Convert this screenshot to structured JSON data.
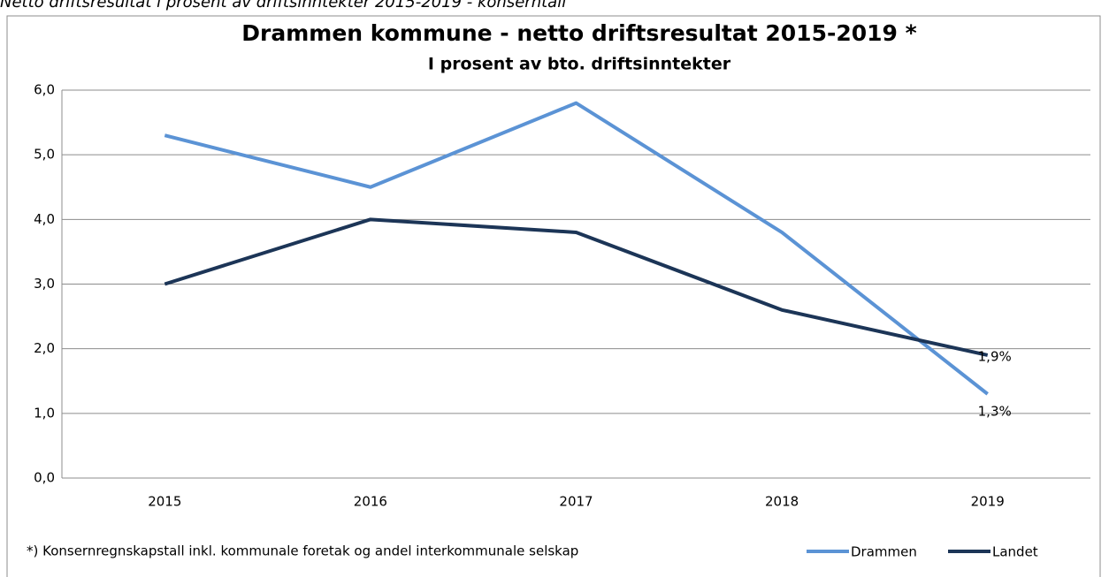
{
  "caption": "Netto driftsresultat i prosent av driftsinntekter 2015-2019 - konserntall",
  "chart_data": {
    "type": "line",
    "title": "Drammen kommune - netto driftsresultat 2015-2019 *",
    "subtitle": "I prosent av bto. driftsinntekter",
    "categories": [
      "2015",
      "2016",
      "2017",
      "2018",
      "2019"
    ],
    "series": [
      {
        "name": "Drammen",
        "color": "#5b93d5",
        "values": [
          5.3,
          4.5,
          5.8,
          3.8,
          1.3
        ],
        "value_labels": [
          null,
          null,
          null,
          null,
          "1,3%"
        ]
      },
      {
        "name": "Landet",
        "color": "#1c3557",
        "values": [
          3.0,
          4.0,
          3.8,
          2.6,
          1.9
        ],
        "value_labels": [
          null,
          null,
          null,
          null,
          "1,9%"
        ]
      }
    ],
    "ylim": [
      0,
      6
    ],
    "yticks": [
      {
        "value": 0,
        "label": "0,0"
      },
      {
        "value": 1,
        "label": "1,0"
      },
      {
        "value": 2,
        "label": "2,0"
      },
      {
        "value": 3,
        "label": "3,0"
      },
      {
        "value": 4,
        "label": "4,0"
      },
      {
        "value": 5,
        "label": "5,0"
      },
      {
        "value": 6,
        "label": "6,0"
      }
    ],
    "grid": true,
    "footnote": "*) Konsernregnskapstall  inkl. kommunale foretak og andel interkommunale selskap",
    "legend": "bottom-right"
  }
}
